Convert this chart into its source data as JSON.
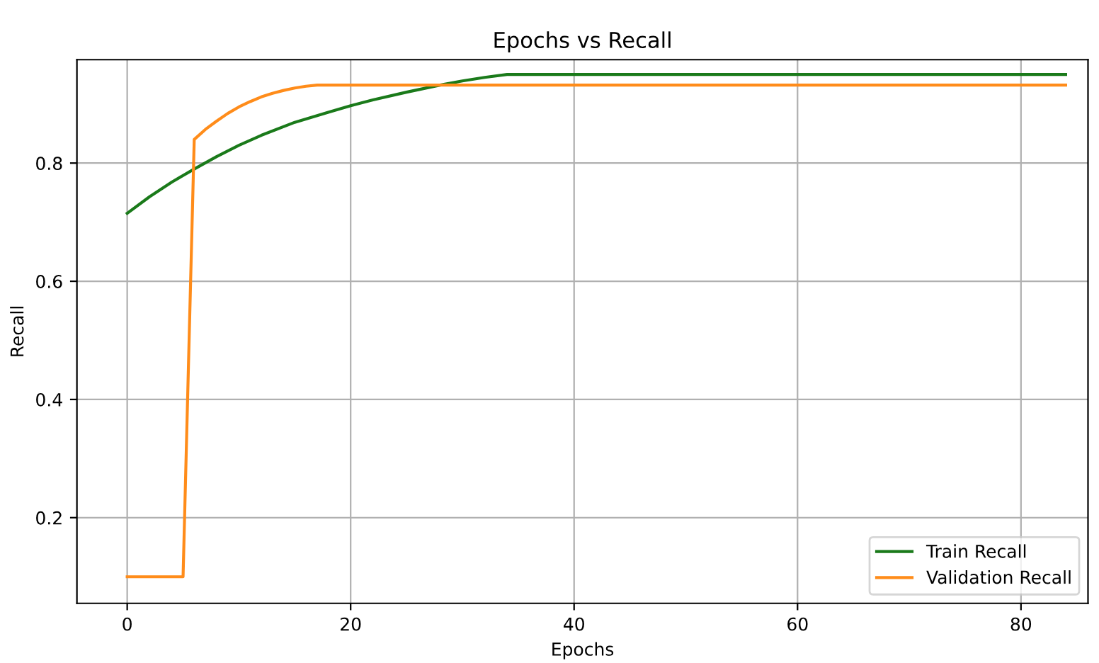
{
  "chart_data": {
    "type": "line",
    "title": "Epochs vs Recall",
    "xlabel": "Epochs",
    "ylabel": "Recall",
    "xlim": [
      -4.5,
      86
    ],
    "ylim": [
      0.055,
      0.975
    ],
    "xticks": [
      0,
      20,
      40,
      60,
      80
    ],
    "yticks": [
      0.2,
      0.4,
      0.6,
      0.8
    ],
    "grid": true,
    "legend": "bottom right",
    "line_style": "solid",
    "marker": "none",
    "series": [
      {
        "name": "Train Recall",
        "color": "#1a7a1a",
        "x": [
          0,
          2,
          4,
          6,
          8,
          10,
          12,
          15,
          18,
          20,
          22,
          25,
          28,
          30,
          32,
          34,
          84
        ],
        "values": [
          0.715,
          0.743,
          0.768,
          0.79,
          0.811,
          0.83,
          0.847,
          0.869,
          0.886,
          0.897,
          0.907,
          0.92,
          0.932,
          0.939,
          0.945,
          0.95,
          0.95
        ]
      },
      {
        "name": "Validation Recall",
        "color": "#ff8c1a",
        "x": [
          0,
          5,
          6,
          7,
          8,
          9,
          10,
          11,
          12,
          13,
          14,
          15,
          16,
          17,
          84
        ],
        "values": [
          0.1,
          0.1,
          0.84,
          0.857,
          0.871,
          0.884,
          0.895,
          0.904,
          0.912,
          0.918,
          0.923,
          0.927,
          0.93,
          0.932,
          0.932
        ]
      }
    ]
  }
}
